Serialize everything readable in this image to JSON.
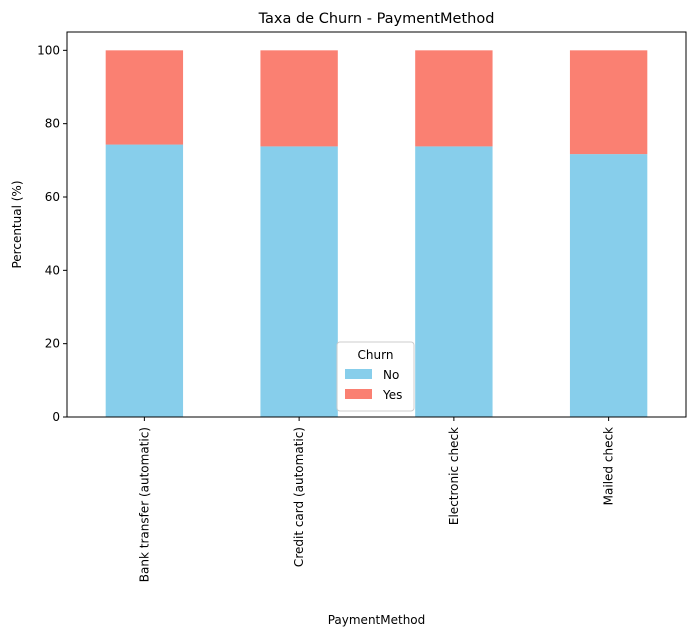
{
  "chart_data": {
    "type": "bar",
    "stacked": true,
    "title": "Taxa de Churn - PaymentMethod",
    "xlabel": "PaymentMethod",
    "ylabel": "Percentual (%)",
    "ylim": [
      0,
      105
    ],
    "yticks": [
      0,
      20,
      40,
      60,
      80,
      100
    ],
    "categories": [
      "Bank transfer (automatic)",
      "Credit card (automatic)",
      "Electronic check",
      "Mailed check"
    ],
    "series": [
      {
        "name": "No",
        "color": "#87ceeb",
        "values": [
          74.3,
          73.8,
          73.8,
          71.7
        ]
      },
      {
        "name": "Yes",
        "color": "#fa8072",
        "values": [
          25.7,
          26.2,
          26.2,
          28.3
        ]
      }
    ],
    "legend": {
      "title": "Churn",
      "position": "lower-center"
    }
  }
}
